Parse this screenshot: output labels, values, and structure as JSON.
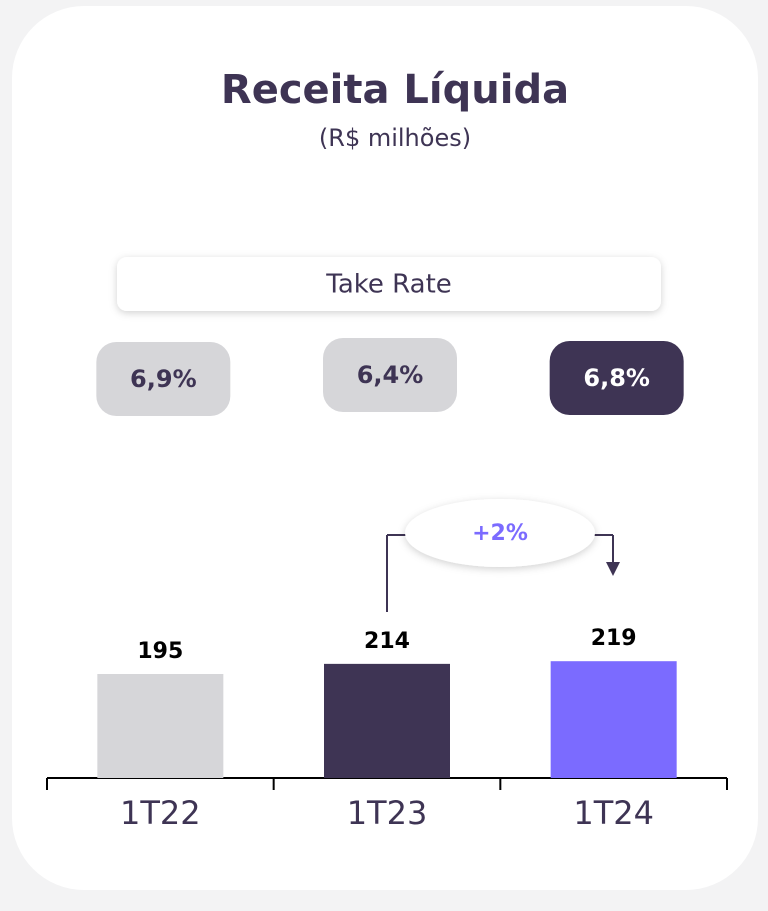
{
  "chart_data": {
    "type": "bar",
    "title": "Receita Líquida",
    "subtitle": "(R$ milhões)",
    "categories": [
      "1T22",
      "1T23",
      "1T24"
    ],
    "values": [
      195,
      214,
      219
    ],
    "colors": [
      "#d6d6d9",
      "#3e3454",
      "#7b6bff"
    ],
    "ylim": [
      0,
      240
    ],
    "take_rate": {
      "label": "Take Rate",
      "values": [
        6.9,
        6.4,
        6.8
      ],
      "value_labels": [
        "6,9%",
        "6,4%",
        "6,8%"
      ]
    },
    "annotation": "+2%"
  }
}
